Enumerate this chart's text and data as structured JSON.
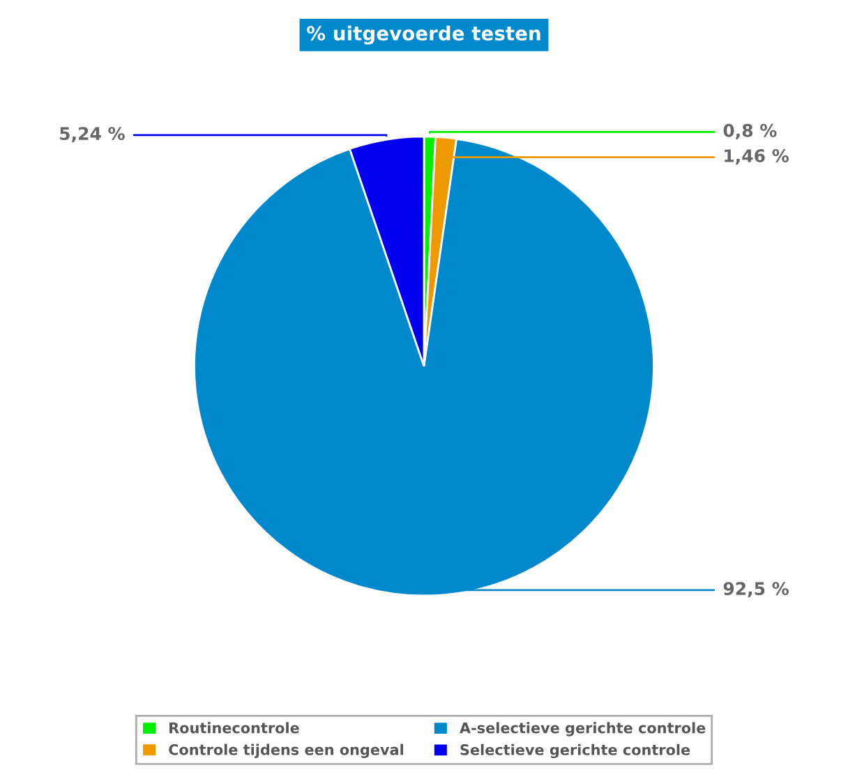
{
  "chart_data": {
    "type": "pie",
    "title": "% uitgevoerde testen",
    "categories": [
      "Routinecontrole",
      "Controle tijdens een ongeval",
      "A-selectieve gerichte controle",
      "Selectieve gerichte controle"
    ],
    "values": [
      0.8,
      1.46,
      92.5,
      5.24
    ],
    "value_labels": [
      "0,8 %",
      "1,46 %",
      "92,5 %",
      "5,24 %"
    ],
    "colors": [
      "#00ee00",
      "#ee9900",
      "#0088cc",
      "#0000ee"
    ],
    "legend": "bottom"
  }
}
